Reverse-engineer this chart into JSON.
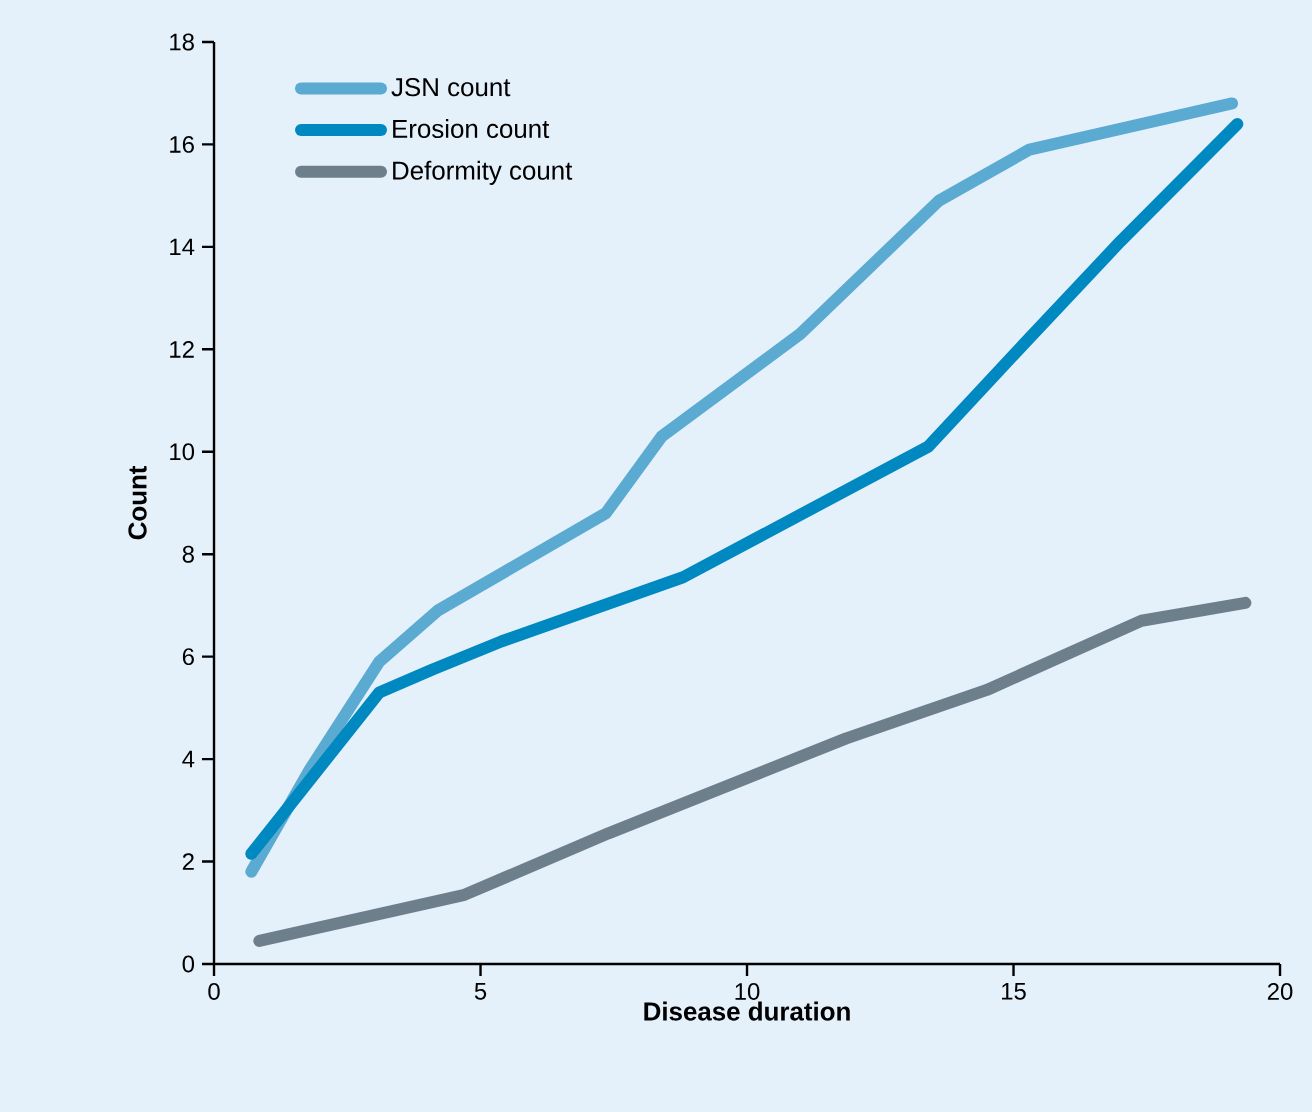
{
  "chart_data": {
    "type": "line",
    "xlabel": "Disease duration",
    "ylabel": "Count",
    "xlim": [
      0,
      20
    ],
    "xticks": [
      0,
      5,
      10,
      15,
      20
    ],
    "ylim": [
      0,
      18
    ],
    "yticks": [
      0,
      2,
      4,
      6,
      8,
      10,
      12,
      14,
      16,
      18
    ],
    "grid": false,
    "legend": "top left",
    "marker": "none",
    "line_style": "solid",
    "series": [
      {
        "name": "JSN count",
        "color": "#5aaad2",
        "x": [
          0.7,
          1.8,
          3.1,
          4.2,
          7.35,
          8.4,
          11.0,
          13.6,
          15.3,
          19.1
        ],
        "values": [
          1.8,
          3.8,
          5.9,
          6.9,
          8.8,
          10.3,
          12.3,
          14.9,
          15.9,
          16.8
        ]
      },
      {
        "name": "Erosion count",
        "color": "#0088c0",
        "x": [
          0.7,
          3.1,
          4.1,
          5.4,
          8.8,
          13.4,
          15.1,
          17.0,
          19.2
        ],
        "values": [
          2.15,
          5.3,
          5.75,
          6.3,
          7.55,
          10.1,
          12.0,
          14.1,
          16.4
        ]
      },
      {
        "name": "Deformity count",
        "color": "#6e7f8c",
        "x": [
          0.85,
          4.7,
          7.4,
          11.85,
          14.5,
          17.4,
          19.35
        ],
        "values": [
          0.45,
          1.35,
          2.55,
          4.4,
          5.35,
          6.7,
          7.05
        ]
      }
    ]
  }
}
